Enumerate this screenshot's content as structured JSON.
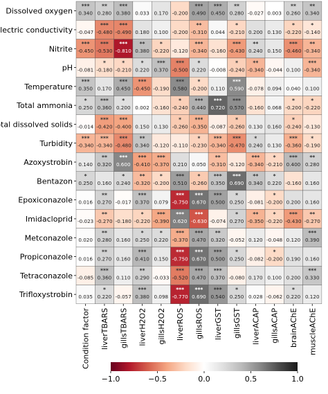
{
  "chart_data": {
    "type": "heatmap",
    "rows": [
      "Dissolved oxygen",
      "Electric conductivity",
      "Nitrite",
      "pH",
      "Temperature",
      "Total ammonia",
      "Total dissolved solids",
      "Turbidity",
      "Azoxystrobin",
      "Bentazon",
      "Epoxiconazole",
      "Imidacloprid",
      "Metconazole",
      "Propiconazole",
      "Tetraconazole",
      "Trifloxystrobin"
    ],
    "columns": [
      "Condition factor",
      "liverTBARS",
      "gillsTBARS",
      "liverH2O2",
      "gillsH2O2",
      "liverROS",
      "gillsROS",
      "liverGST",
      "gillsGST",
      "liverACAP",
      "gillsACAP",
      "brainAChE",
      "muscleAChE"
    ],
    "values": [
      [
        0.34,
        0.28,
        0.38,
        0.033,
        0.17,
        -0.2,
        0.49,
        0.45,
        0.28,
        -0.027,
        0.003,
        0.26,
        0.34
      ],
      [
        -0.047,
        -0.48,
        -0.49,
        0.18,
        0.1,
        -0.2,
        -0.31,
        0.044,
        -0.21,
        0.2,
        0.13,
        -0.22,
        -0.14
      ],
      [
        -0.45,
        -0.53,
        -0.81,
        0.38,
        -0.22,
        -0.12,
        -0.34,
        -0.16,
        -0.43,
        0.24,
        0.15,
        -0.46,
        -0.34
      ],
      [
        -0.081,
        -0.18,
        -0.21,
        0.22,
        0.37,
        -0.5,
        0.22,
        -0.008,
        -0.24,
        -0.34,
        -0.044,
        0.1,
        -0.34
      ],
      [
        0.35,
        0.17,
        0.45,
        -0.45,
        -0.19,
        0.58,
        -0.2,
        0.11,
        0.59,
        -0.078,
        0.094,
        0.04,
        0.1
      ],
      [
        0.25,
        0.36,
        0.2,
        0.002,
        -0.16,
        -0.24,
        0.44,
        0.72,
        0.57,
        -0.16,
        0.068,
        -0.2,
        -0.22
      ],
      [
        -0.014,
        -0.42,
        -0.4,
        0.15,
        0.13,
        -0.26,
        -0.35,
        -0.087,
        -0.26,
        0.13,
        0.16,
        -0.24,
        -0.13
      ],
      [
        -0.34,
        -0.34,
        -0.48,
        0.34,
        -0.12,
        -0.11,
        -0.23,
        -0.34,
        -0.47,
        0.24,
        0.13,
        -0.36,
        -0.19
      ],
      [
        0.14,
        0.32,
        0.6,
        -0.41,
        -0.37,
        0.21,
        0.05,
        -0.31,
        -0.12,
        -0.34,
        -0.21,
        0.4,
        0.28
      ],
      [
        0.25,
        0.16,
        0.24,
        -0.32,
        -0.2,
        0.51,
        -0.26,
        0.35,
        0.69,
        0.34,
        0.22,
        -0.16,
        0.16
      ],
      [
        0.016,
        0.27,
        -0.017,
        0.37,
        0.079,
        -0.75,
        0.67,
        0.5,
        0.25,
        -0.081,
        -0.2,
        0.2,
        0.16
      ],
      [
        -0.023,
        -0.27,
        -0.18,
        -0.22,
        -0.39,
        0.62,
        -0.63,
        -0.074,
        0.27,
        -0.35,
        -0.22,
        -0.43,
        -0.27
      ],
      [
        0.02,
        0.28,
        0.16,
        0.25,
        0.22,
        -0.37,
        0.47,
        0.32,
        -0.052,
        0.12,
        -0.048,
        0.12,
        0.39
      ],
      [
        0.016,
        0.27,
        0.16,
        0.41,
        0.15,
        -0.75,
        0.67,
        0.5,
        0.25,
        -0.082,
        -0.2,
        0.19,
        0.16
      ],
      [
        -0.085,
        0.36,
        0.11,
        0.29,
        -0.033,
        -0.52,
        0.47,
        0.37,
        -0.08,
        0.17,
        0.1,
        0.2,
        0.33
      ],
      [
        0.035,
        0.22,
        -0.057,
        0.38,
        0.098,
        -0.77,
        0.69,
        0.54,
        0.25,
        0.028,
        -0.062,
        0.22,
        0.12
      ]
    ],
    "significance": [
      [
        "***",
        "**",
        "***",
        "",
        "",
        "",
        "***",
        "***",
        "**",
        "",
        "",
        "**",
        "**"
      ],
      [
        "",
        "***",
        "***",
        "",
        "",
        "",
        "**",
        "",
        "*",
        "",
        "",
        "*",
        "*"
      ],
      [
        "***",
        "***",
        "***",
        "**",
        "*",
        "",
        "***",
        "",
        "***",
        "**",
        "",
        "***",
        "**"
      ],
      [
        "",
        "*",
        "*",
        "*",
        "***",
        "***",
        "*",
        "",
        "*",
        "**",
        "",
        "",
        "***"
      ],
      [
        "***",
        "",
        "***",
        "***",
        "",
        "***",
        "*",
        "",
        "***",
        "",
        "",
        "",
        ""
      ],
      [
        "*",
        "***",
        "*",
        "",
        "",
        "*",
        "***",
        "***",
        "***",
        "",
        "",
        "*",
        "*"
      ],
      [
        "",
        "***",
        "***",
        "",
        "",
        "*",
        "***",
        "",
        "*",
        "",
        "",
        "*",
        ""
      ],
      [
        "***",
        "***",
        "***",
        "**",
        "",
        "",
        "*",
        "***",
        "***",
        "*",
        "",
        "***",
        "*"
      ],
      [
        "",
        "**",
        "***",
        "***",
        "***",
        "",
        "",
        "**",
        "",
        "***",
        "*",
        "***",
        "**"
      ],
      [
        "*",
        "",
        "*",
        "**",
        "*",
        "***",
        "*",
        "***",
        "***",
        "**",
        "*",
        "",
        ""
      ],
      [
        "",
        "**",
        "",
        "***",
        "",
        "***",
        "***",
        "***",
        "*",
        "",
        "*",
        "",
        ""
      ],
      [
        "",
        "**",
        "",
        "*",
        "***",
        "***",
        "***",
        "",
        "*",
        "**",
        "*",
        "***",
        "**"
      ],
      [
        "",
        "**",
        "",
        "*",
        "*",
        "***",
        "***",
        "**",
        "",
        "",
        "",
        "",
        "***"
      ],
      [
        "",
        "**",
        "",
        "***",
        "",
        "***",
        "***",
        "***",
        "*",
        "",
        "*",
        "",
        ""
      ],
      [
        "",
        "***",
        "",
        "**",
        "",
        "***",
        "***",
        "***",
        "",
        "",
        "",
        "",
        "***"
      ],
      [
        "",
        "*",
        "",
        "***",
        "",
        "***",
        "***",
        "***",
        "*",
        "",
        "",
        "*",
        ""
      ]
    ],
    "colorbar": {
      "min": -1.0,
      "max": 1.0,
      "ticks": [
        -1.0,
        -0.5,
        0.0,
        0.5,
        1.0
      ],
      "tick_labels": [
        "−1.0",
        "−0.5",
        "0.0",
        "0.5",
        "1.0"
      ]
    },
    "colormap": "RdGy"
  }
}
